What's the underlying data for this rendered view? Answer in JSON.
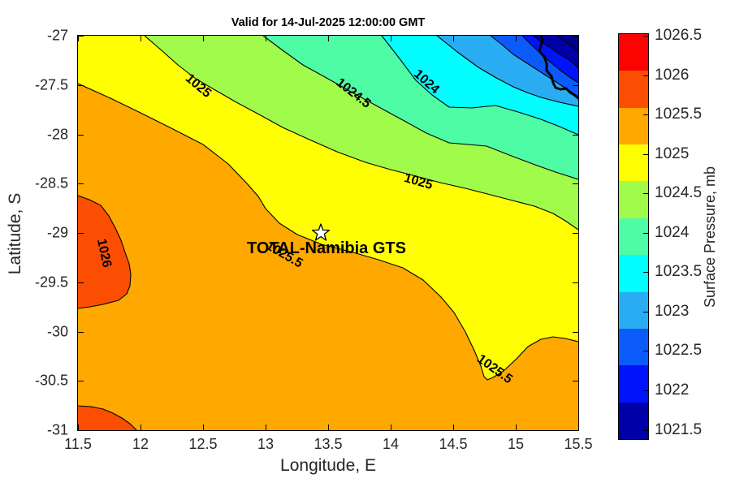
{
  "title": "Valid for 14-Jul-2025 12:00:00 GMT",
  "palette": {
    "red": "#FB0300",
    "orange_red": "#FC4E03",
    "orange": "#FEA800",
    "yellow": "#FFFE02",
    "yellow_green": "#A0FB4B",
    "mint": "#4FFCA6",
    "cyan": "#02FEFE",
    "sky_blue": "#2AACF3",
    "royal_blue": "#0A5BFA",
    "blue": "#0113FB",
    "navy": "#0000A9",
    "deep_navy": "#00008E",
    "coastline": "#000000",
    "tick_text": "#262626"
  },
  "chart_data": {
    "type": "filled_contour_map",
    "title": "Valid for 14-Jul-2025 12:00:00 GMT",
    "xlabel": "Longitude, E",
    "ylabel": "Latitude, S",
    "xlim": [
      11.5,
      15.5
    ],
    "ylim": [
      -31,
      -27
    ],
    "xticks": [
      "11.5",
      "12",
      "12.5",
      "13",
      "13.5",
      "14",
      "14.5",
      "15",
      "15.5"
    ],
    "yticks": [
      "-27",
      "-27.5",
      "-28",
      "-28.5",
      "-29",
      "-29.5",
      "-30",
      "-30.5",
      "-31"
    ],
    "grid": false,
    "field": "surface pressure (mb)",
    "contour_interval_mb": 0.5,
    "value_range_on_map_mb": [
      1021.5,
      1026.5
    ],
    "gradient": "pressure decreases from over 1026 mb at the west edge toward below 1022 mb in the northeast corner",
    "contour_labels": [
      {
        "text": "1025",
        "lon": 12.45,
        "lat": -27.5
      },
      {
        "text": "1024.5",
        "lon": 13.68,
        "lat": -27.56
      },
      {
        "text": "1024",
        "lon": 14.22,
        "lat": -27.45
      },
      {
        "text": "1025",
        "lon": 14.2,
        "lat": -28.45
      },
      {
        "text": "1025.5",
        "lon": 13.15,
        "lat": -29.2
      },
      {
        "text": "1025.5",
        "lon": 14.75,
        "lat": -30.35
      },
      {
        "text": "1026",
        "lon": 11.72,
        "lat": -29.15
      }
    ],
    "bands": [
      {
        "range_mb": "1026 to 1026.5",
        "color": "#FC4E03",
        "where": "two small patches at west edge (~29S) and southwest corner"
      },
      {
        "range_mb": "1025.5 to 1026",
        "color": "#FEA800",
        "where": "large southwest region"
      },
      {
        "range_mb": "1025 to 1025.5",
        "color": "#FFFE02",
        "where": "broad diagonal band through center incl. northwest corner"
      },
      {
        "range_mb": "1024.5 to 1025",
        "color": "#A0FB4B",
        "where": "diagonal band"
      },
      {
        "range_mb": "1024 to 1024.5",
        "color": "#4FFCA6",
        "where": "diagonal band"
      },
      {
        "range_mb": "1023.5 to 1024",
        "color": "#02FEFE",
        "where": "diagonal band toward northeast"
      },
      {
        "range_mb": "1023 to 1023.5",
        "color": "#2AACF3",
        "where": "northeast corner band"
      },
      {
        "range_mb": "1022.5 to 1023",
        "color": "#0A5BFA",
        "where": "northeast corner band"
      },
      {
        "range_mb": "1022 to 1022.5",
        "color": "#0113FB",
        "where": "northeast corner band"
      },
      {
        "range_mb": "below 1022",
        "color": "#0000A9",
        "where": "extreme northeast corner"
      }
    ],
    "colorbar": {
      "label": "Surface Pressure, mb",
      "ticks": [
        "1026.5",
        "1026",
        "1025.5",
        "1025",
        "1024.5",
        "1024",
        "1023.5",
        "1023",
        "1022.5",
        "1022",
        "1021.5"
      ],
      "band_colors_top_to_bottom": [
        "#FB0300",
        "#FC4E03",
        "#FEA800",
        "#FFFE02",
        "#A0FB4B",
        "#4FFCA6",
        "#02FEFE",
        "#2AACF3",
        "#0A5BFA",
        "#0113FB",
        "#0000A9"
      ]
    },
    "station_marker": {
      "label": "TOTAL-Namibia GTS",
      "marker": "white star",
      "lon": 13.44,
      "lat": -29.0
    },
    "coastline": "short stretch of southwest African coast crossing the extreme northeast corner"
  }
}
